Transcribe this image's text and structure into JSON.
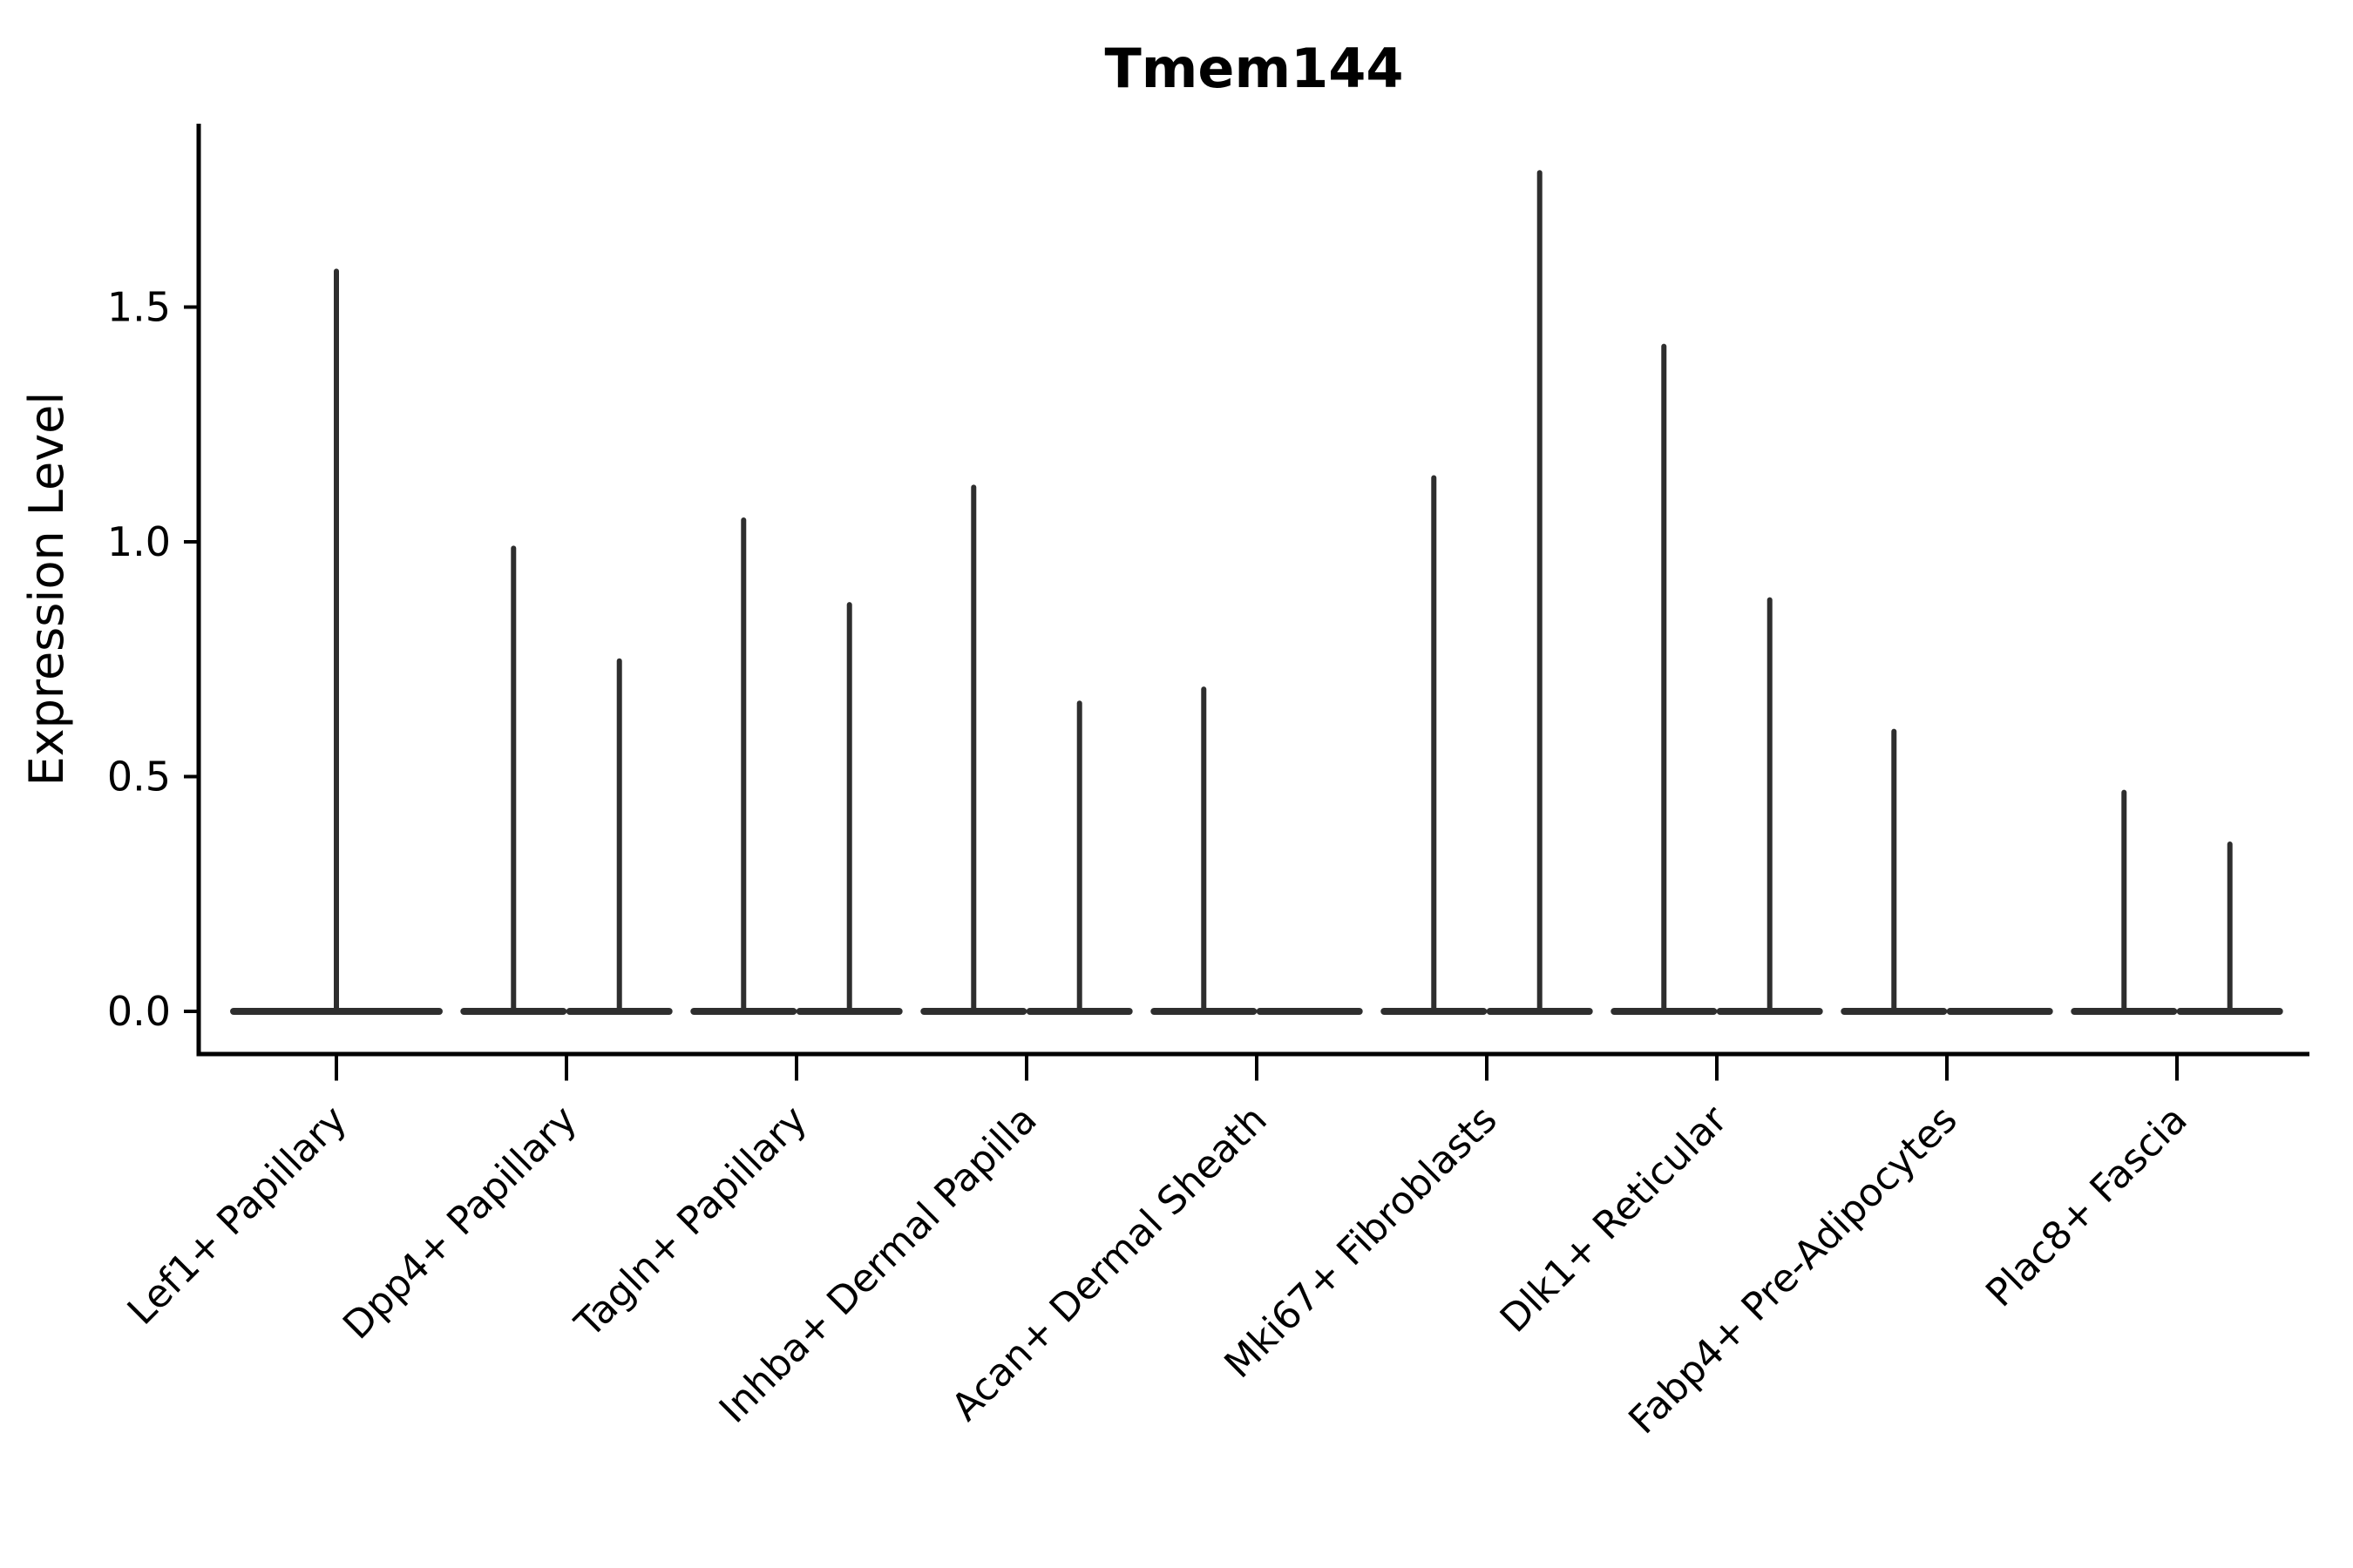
{
  "chart_data": {
    "type": "violin",
    "title": "Tmem144",
    "ylabel": "Expression Level",
    "xlabel": "",
    "ylim": [
      -0.09,
      1.89
    ],
    "ytick_values": [
      0.0,
      0.5,
      1.0,
      1.5
    ],
    "ytick_labels": [
      "0.0",
      "0.5",
      "1.0",
      "1.5"
    ],
    "grid": false,
    "legend": "none",
    "description": "Violin plot of Tmem144 expression; each cluster shows flat near-zero density with thin spikes up to the max expression value. Some clusters contain two sub-violins, some one; sub-violins with max 0 are flat lines.",
    "categories": [
      {
        "label": "Lef1+ Papillary",
        "violins": [
          {
            "offset": 0.0,
            "width": 0.924,
            "max": 1.58
          }
        ]
      },
      {
        "label": "Dpp4+ Papillary",
        "violins": [
          {
            "offset": -0.23,
            "width": 0.462,
            "max": 0.99
          },
          {
            "offset": 0.23,
            "width": 0.462,
            "max": 0.75
          }
        ]
      },
      {
        "label": "Tagln+ Papillary",
        "violins": [
          {
            "offset": -0.23,
            "width": 0.462,
            "max": 1.05
          },
          {
            "offset": 0.23,
            "width": 0.462,
            "max": 0.87
          }
        ]
      },
      {
        "label": "Inhba+ Dermal Papilla",
        "violins": [
          {
            "offset": -0.23,
            "width": 0.462,
            "max": 1.12
          },
          {
            "offset": 0.23,
            "width": 0.462,
            "max": 0.66
          }
        ]
      },
      {
        "label": "Acan+ Dermal Sheath",
        "violins": [
          {
            "offset": -0.23,
            "width": 0.462,
            "max": 0.69
          },
          {
            "offset": 0.23,
            "width": 0.462,
            "max": 0.0
          }
        ]
      },
      {
        "label": "Mki67+ Fibroblasts",
        "violins": [
          {
            "offset": -0.23,
            "width": 0.462,
            "max": 1.14
          },
          {
            "offset": 0.23,
            "width": 0.462,
            "max": 1.79
          }
        ]
      },
      {
        "label": "Dlk1+ Reticular",
        "violins": [
          {
            "offset": -0.23,
            "width": 0.462,
            "max": 1.42
          },
          {
            "offset": 0.23,
            "width": 0.462,
            "max": 0.88
          }
        ]
      },
      {
        "label": "Fabp4+ Pre-Adipocytes",
        "violins": [
          {
            "offset": -0.23,
            "width": 0.462,
            "max": 0.6
          },
          {
            "offset": 0.23,
            "width": 0.462,
            "max": 0.0
          }
        ]
      },
      {
        "label": "Plac8+ Fascia",
        "violins": [
          {
            "offset": -0.23,
            "width": 0.462,
            "max": 0.47
          },
          {
            "offset": 0.23,
            "width": 0.462,
            "max": 0.36
          }
        ]
      }
    ],
    "colors": {
      "violin": "#2e2e2e",
      "axis": "#000000",
      "text": "#000000",
      "background": "#ffffff"
    }
  }
}
